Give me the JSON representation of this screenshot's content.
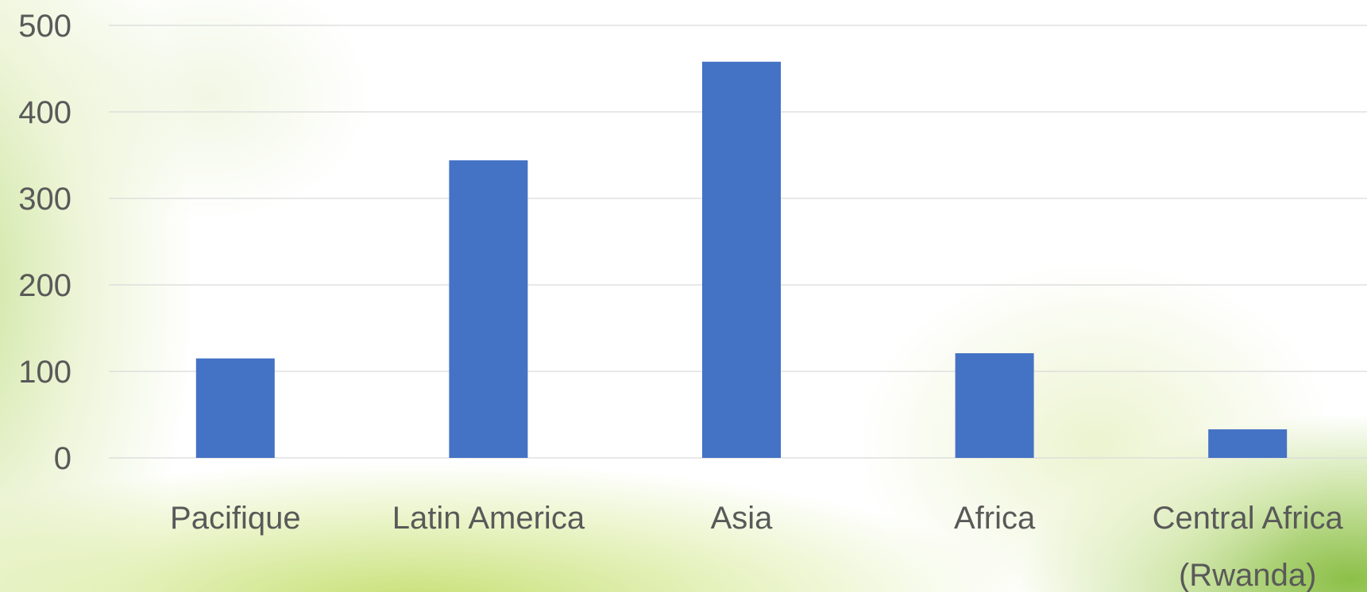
{
  "chart_data": {
    "type": "bar",
    "categories": [
      "Pacifique",
      "Latin America",
      "Asia",
      "Africa",
      "Central Africa (Rwanda)"
    ],
    "category_lines": [
      [
        "Pacifique"
      ],
      [
        "Latin America"
      ],
      [
        "Asia"
      ],
      [
        "Africa"
      ],
      [
        "Central Africa",
        "(Rwanda)"
      ]
    ],
    "values": [
      115,
      344,
      458,
      121,
      33
    ],
    "ylim": [
      0,
      500
    ],
    "yticks": [
      0,
      100,
      200,
      300,
      400,
      500
    ],
    "grid": true,
    "bar_color": "#4472c4",
    "title": "",
    "xlabel": "",
    "ylabel": ""
  }
}
